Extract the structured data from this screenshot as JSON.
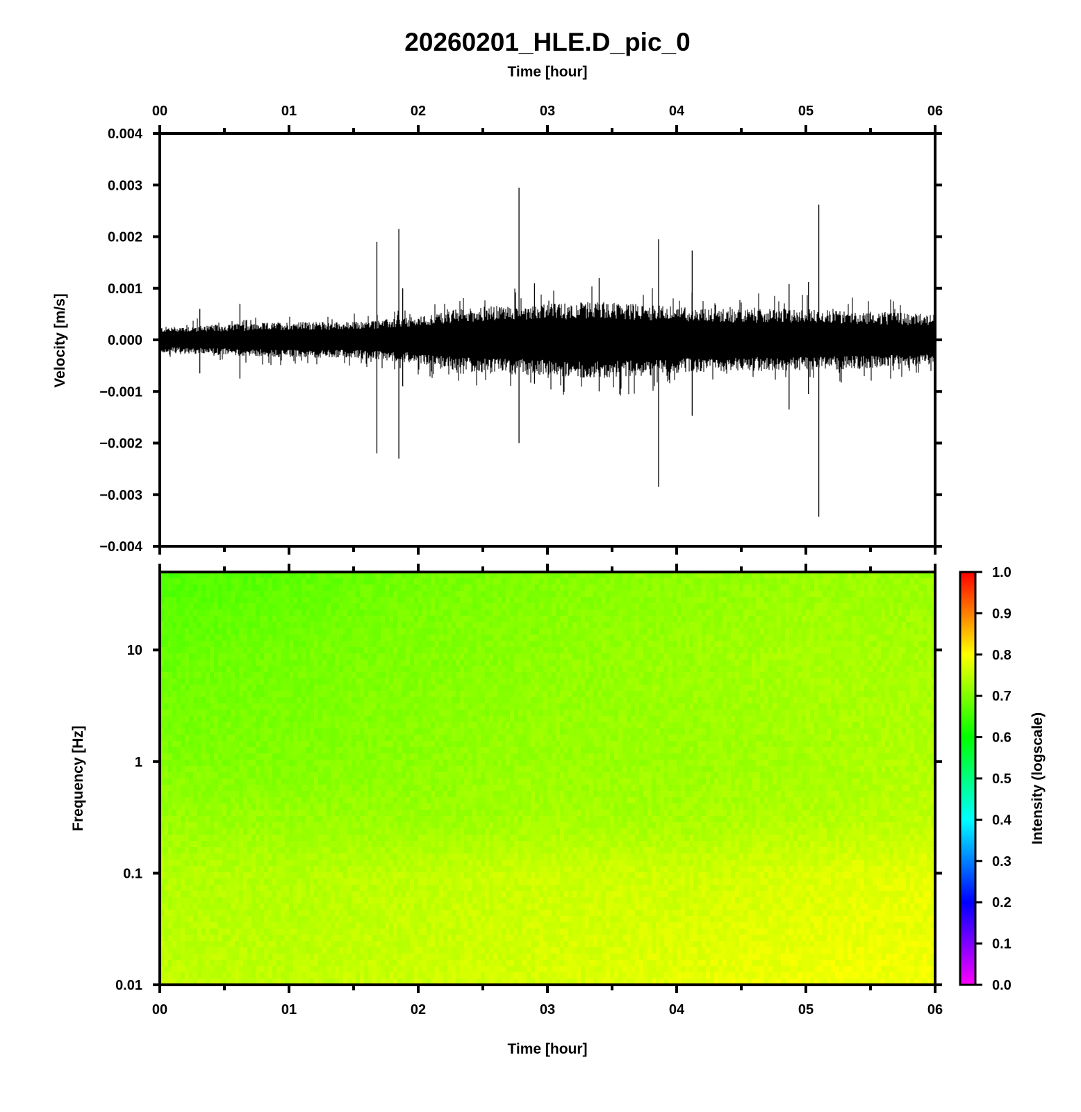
{
  "figure": {
    "title": "20260201_HLE.D_pic_0",
    "top_axis_label": "Time [hour]",
    "bottom_axis_label": "Time [hour]"
  },
  "colors": {
    "waveform": "#000000",
    "frame": "#000000",
    "background": "#ffffff"
  },
  "chart_data": [
    {
      "type": "line",
      "panel": "velocity waveform",
      "xlabel": "Time [hour]",
      "ylabel": "Velocity [m/s]",
      "xlim": [
        0,
        6
      ],
      "ylim": [
        -0.004,
        0.004
      ],
      "x_ticks": [
        0,
        1,
        2,
        3,
        4,
        5,
        6
      ],
      "x_tick_labels": [
        "00",
        "01",
        "02",
        "03",
        "04",
        "05",
        "06"
      ],
      "x_minor_step": 0.5,
      "y_ticks": [
        0.004,
        0.003,
        0.002,
        0.001,
        0.0,
        -0.001,
        -0.002,
        -0.003,
        -0.004
      ],
      "y_tick_labels": [
        "0.004",
        "0.003",
        "0.002",
        "0.001",
        "0.000",
        "−0.001",
        "−0.002",
        "−0.003",
        "−0.004"
      ],
      "envelope": {
        "x": [
          0.0,
          0.5,
          1.0,
          1.5,
          2.0,
          2.3,
          2.5,
          3.0,
          3.4,
          3.7,
          4.0,
          4.5,
          5.0,
          5.5,
          6.0
        ],
        "upper": [
          0.00025,
          0.0003,
          0.00035,
          0.00035,
          0.00045,
          0.0006,
          0.00065,
          0.0007,
          0.00075,
          0.0007,
          0.00065,
          0.0006,
          0.0006,
          0.00055,
          0.0005
        ],
        "lower": [
          -0.00025,
          -0.0003,
          -0.00035,
          -0.00035,
          -0.00045,
          -0.0006,
          -0.00065,
          -0.0007,
          -0.00075,
          -0.0007,
          -0.00065,
          -0.0006,
          -0.0006,
          -0.00055,
          -0.0005
        ]
      },
      "spikes": [
        {
          "x": 1.68,
          "max": 0.0019,
          "min": -0.0022
        },
        {
          "x": 1.85,
          "max": 0.00215,
          "min": -0.0023
        },
        {
          "x": 2.78,
          "max": 0.00295,
          "min": -0.002
        },
        {
          "x": 3.86,
          "max": 0.00195,
          "min": -0.00285
        },
        {
          "x": 4.12,
          "max": 0.00173,
          "min": -0.00147
        },
        {
          "x": 5.1,
          "max": 0.00262,
          "min": -0.00343
        },
        {
          "x": 0.31,
          "max": 0.0006,
          "min": -0.00065
        },
        {
          "x": 0.62,
          "max": 0.0007,
          "min": -0.00075
        },
        {
          "x": 1.88,
          "max": 0.001,
          "min": -0.0009
        },
        {
          "x": 3.4,
          "max": 0.0012,
          "min": -0.001
        },
        {
          "x": 4.87,
          "max": 0.00108,
          "min": -0.00135
        },
        {
          "x": 5.02,
          "max": 0.00112,
          "min": -0.00105
        },
        {
          "x": 2.9,
          "max": 0.0011,
          "min": -0.00085
        }
      ]
    },
    {
      "type": "heatmap",
      "panel": "spectrogram",
      "xlabel": "Time [hour]",
      "ylabel": "Frequency [Hz]",
      "xlim": [
        0,
        6
      ],
      "ylim": [
        0.01,
        50
      ],
      "y_scale": "log",
      "x_ticks": [
        0,
        1,
        2,
        3,
        4,
        5,
        6
      ],
      "x_tick_labels": [
        "00",
        "01",
        "02",
        "03",
        "04",
        "05",
        "06"
      ],
      "y_ticks": [
        10,
        1,
        0.1,
        0.01
      ],
      "y_tick_labels": [
        "10",
        "1",
        "0.1",
        "0.01"
      ],
      "intensity_grid": {
        "times": [
          0,
          1,
          2,
          3,
          4,
          5,
          6
        ],
        "frequencies": [
          50,
          10,
          1,
          0.3,
          0.1,
          0.01
        ],
        "values": [
          [
            0.66,
            0.67,
            0.69,
            0.7,
            0.71,
            0.72,
            0.72
          ],
          [
            0.68,
            0.69,
            0.7,
            0.71,
            0.72,
            0.73,
            0.73
          ],
          [
            0.7,
            0.7,
            0.71,
            0.72,
            0.72,
            0.73,
            0.74
          ],
          [
            0.72,
            0.72,
            0.72,
            0.73,
            0.73,
            0.74,
            0.75
          ],
          [
            0.74,
            0.74,
            0.75,
            0.76,
            0.76,
            0.77,
            0.78
          ],
          [
            0.75,
            0.75,
            0.76,
            0.77,
            0.78,
            0.79,
            0.79
          ]
        ]
      },
      "colorbar": {
        "label": "Intensity (logscale)",
        "range": [
          0.0,
          1.0
        ],
        "ticks": [
          1.0,
          0.9,
          0.8,
          0.7,
          0.6,
          0.5,
          0.4,
          0.3,
          0.2,
          0.1,
          0.0
        ],
        "tick_labels": [
          "1.0",
          "0.9",
          "0.8",
          "0.7",
          "0.6",
          "0.5",
          "0.4",
          "0.3",
          "0.2",
          "0.1",
          "0.0"
        ],
        "stops": [
          {
            "v": 0.0,
            "color": "#ff00ff"
          },
          {
            "v": 0.2,
            "color": "#0000ff"
          },
          {
            "v": 0.4,
            "color": "#00ffff"
          },
          {
            "v": 0.6,
            "color": "#00ff00"
          },
          {
            "v": 0.8,
            "color": "#ffff00"
          },
          {
            "v": 1.0,
            "color": "#ff0000"
          }
        ]
      }
    }
  ]
}
